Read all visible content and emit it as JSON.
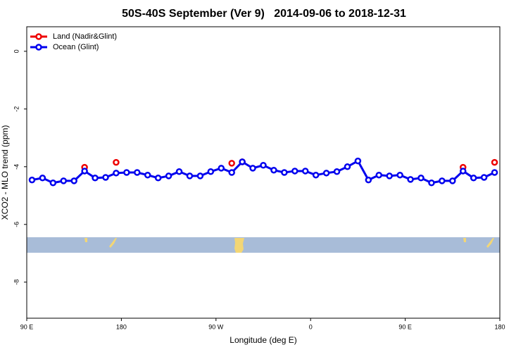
{
  "chart_data": {
    "type": "line",
    "title": "50S-40S September (Ver 9)   2014-09-06 to 2018-12-31",
    "x_label": "Longitude (deg E)",
    "y_label": "XCO2 - MLO trend (ppm)",
    "xlim": [
      90,
      540
    ],
    "xticks": [
      {
        "value": 90,
        "label": "90 E"
      },
      {
        "value": 180,
        "label": "180"
      },
      {
        "value": 270,
        "label": "90 W"
      },
      {
        "value": 360,
        "label": "0"
      },
      {
        "value": 450,
        "label": "90 E"
      },
      {
        "value": 540,
        "label": "180"
      }
    ],
    "ylim": [
      -9.25,
      0.85
    ],
    "yticks": [
      0,
      -2,
      -4,
      -6,
      -8
    ],
    "legend": "top-left",
    "series": [
      {
        "name": "Land (Nadir&Glint)",
        "color": "#ee0000",
        "mode": "points",
        "x": [
          145,
          175,
          285,
          295,
          505,
          535
        ],
        "values": [
          -4.02,
          -3.85,
          -3.88,
          -3.83,
          -4.02,
          -3.85
        ]
      },
      {
        "name": "Ocean (Glint)",
        "color": "#0000ee",
        "mode": "line",
        "x": [
          95,
          105,
          115,
          125,
          135,
          145,
          155,
          165,
          175,
          185,
          195,
          205,
          215,
          225,
          235,
          245,
          255,
          265,
          275,
          285,
          295,
          305,
          315,
          325,
          335,
          345,
          355,
          365,
          375,
          385,
          395,
          405,
          415,
          425,
          435,
          445,
          455,
          465,
          475,
          485,
          495,
          505,
          515,
          525,
          535
        ],
        "values": [
          -4.46,
          -4.39,
          -4.56,
          -4.49,
          -4.49,
          -4.15,
          -4.39,
          -4.37,
          -4.22,
          -4.2,
          -4.2,
          -4.29,
          -4.39,
          -4.32,
          -4.17,
          -4.32,
          -4.32,
          -4.17,
          -4.05,
          -4.2,
          -3.83,
          -4.05,
          -3.95,
          -4.12,
          -4.2,
          -4.15,
          -4.15,
          -4.29,
          -4.22,
          -4.17,
          -4.0,
          -3.8,
          -4.46,
          -4.29,
          -4.32,
          -4.29,
          -4.44,
          -4.39,
          -4.56,
          -4.49,
          -4.49,
          -4.15,
          -4.39,
          -4.37,
          -4.2
        ]
      }
    ]
  }
}
